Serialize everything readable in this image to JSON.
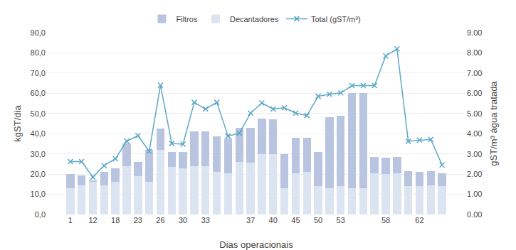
{
  "chart_data": {
    "type": "bar",
    "stacked": true,
    "xlabel": "Dias operacionais",
    "ylabel": "kgST/dia",
    "y2label": "gST/m³ água tratada",
    "categories": [
      "1",
      null,
      "12",
      null,
      "18",
      null,
      "23",
      null,
      "26",
      null,
      "30",
      null,
      "33",
      null,
      null,
      null,
      "37",
      null,
      "40",
      null,
      "45",
      null,
      "50",
      null,
      "53",
      null,
      null,
      null,
      "58",
      null,
      null,
      "62",
      null,
      null
    ],
    "series": [
      {
        "name": "Decantadores",
        "type": "bar",
        "color": "#dce4f2",
        "values": [
          13.0,
          14.5,
          16.0,
          14.5,
          16.0,
          24.0,
          19.0,
          16.0,
          32.0,
          23.5,
          23.0,
          24.0,
          24.0,
          21.0,
          20.5,
          26.0,
          25.5,
          30.0,
          30.0,
          13.0,
          20.5,
          21.0,
          14.0,
          13.0,
          14.0,
          13.0,
          13.0,
          20.5,
          20.0,
          20.5,
          14.0,
          14.0,
          14.5,
          14.0
        ]
      },
      {
        "name": "Filtros",
        "type": "bar",
        "color": "#b8c4e0",
        "values": [
          7.0,
          5.0,
          1.0,
          6.5,
          7.0,
          11.0,
          7.0,
          16.0,
          10.5,
          7.5,
          8.0,
          17.0,
          17.0,
          17.5,
          17.0,
          17.0,
          17.5,
          17.5,
          17.0,
          17.0,
          17.5,
          17.0,
          17.0,
          35.0,
          35.0,
          47.0,
          47.0,
          8.0,
          8.0,
          8.0,
          7.5,
          7.0,
          7.0,
          6.5
        ]
      },
      {
        "name": "Total (gST/m³)",
        "type": "line",
        "axis": "y2",
        "color": "#5ba8c8",
        "marker": "x",
        "line_style": "solid",
        "values": [
          2.62,
          2.62,
          1.85,
          2.42,
          2.76,
          3.63,
          3.9,
          3.13,
          6.4,
          3.52,
          3.48,
          5.55,
          5.22,
          5.55,
          3.88,
          4.02,
          5.02,
          5.52,
          5.22,
          5.28,
          5.02,
          4.9,
          5.85,
          5.95,
          6.02,
          6.38,
          6.38,
          6.38,
          7.85,
          8.2,
          3.62,
          3.68,
          3.72,
          2.45
        ]
      }
    ],
    "ylim": [
      0,
      90
    ],
    "yticks": [
      {
        "value": 0,
        "label": "0,0"
      },
      {
        "value": 10,
        "label": "10,0"
      },
      {
        "value": 20,
        "label": "20,0"
      },
      {
        "value": 30,
        "label": "30,0"
      },
      {
        "value": 40,
        "label": "40,0"
      },
      {
        "value": 50,
        "label": "50,0"
      },
      {
        "value": 60,
        "label": "60,0"
      },
      {
        "value": 70,
        "label": "70,0"
      },
      {
        "value": 80,
        "label": "80,0"
      },
      {
        "value": 90,
        "label": "90,0"
      }
    ],
    "y2lim": [
      0,
      9.0
    ],
    "y2ticks": [
      {
        "value": 0,
        "label": "0.00"
      },
      {
        "value": 1,
        "label": "1.00"
      },
      {
        "value": 2,
        "label": "2.00"
      },
      {
        "value": 3,
        "label": "3.00"
      },
      {
        "value": 4,
        "label": "4.00"
      },
      {
        "value": 5,
        "label": "5.00"
      },
      {
        "value": 6,
        "label": "6.00"
      },
      {
        "value": 7,
        "label": "7.00"
      },
      {
        "value": 8,
        "label": "8.00"
      },
      {
        "value": 9,
        "label": "9.00"
      }
    ],
    "grid": true,
    "legend": "top"
  }
}
